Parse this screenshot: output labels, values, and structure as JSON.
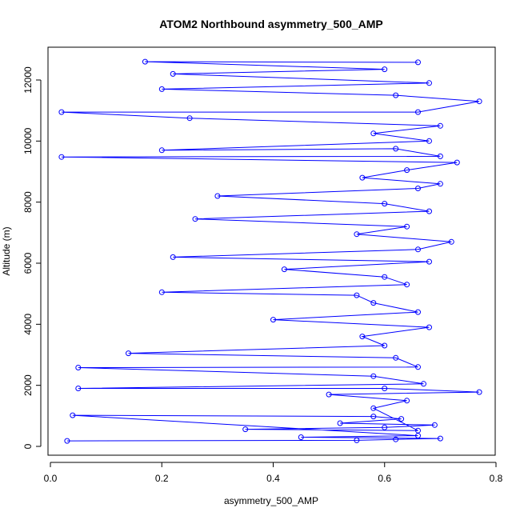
{
  "chart_data": {
    "type": "line",
    "title": "ATOM2 Northbound asymmetry_500_AMP",
    "xlabel": "asymmetry_500_AMP",
    "ylabel": "Altitude (m)",
    "xlim": [
      0,
      0.8
    ],
    "ylim": [
      0,
      12700
    ],
    "x_ticks": [
      "0.0",
      "0.2",
      "0.4",
      "0.6",
      "0.8"
    ],
    "y_ticks": [
      "0",
      "2000",
      "4000",
      "6000",
      "8000",
      "10000",
      "12000"
    ],
    "grid": false,
    "legend": "none",
    "series_color": "#0000ff",
    "marker": "open-circle",
    "series": [
      {
        "points": [
          [
            0.03,
            180
          ],
          [
            0.55,
            200
          ],
          [
            0.62,
            230
          ],
          [
            0.7,
            260
          ],
          [
            0.45,
            300
          ],
          [
            0.66,
            350
          ],
          [
            0.04,
            1020
          ],
          [
            0.58,
            980
          ],
          [
            0.63,
            900
          ],
          [
            0.52,
            760
          ],
          [
            0.69,
            700
          ],
          [
            0.6,
            620
          ],
          [
            0.35,
            560
          ],
          [
            0.66,
            520
          ],
          [
            0.58,
            1250
          ],
          [
            0.64,
            1500
          ],
          [
            0.5,
            1700
          ],
          [
            0.77,
            1780
          ],
          [
            0.6,
            1900
          ],
          [
            0.05,
            1900
          ],
          [
            0.67,
            2050
          ],
          [
            0.58,
            2300
          ],
          [
            0.05,
            2580
          ],
          [
            0.66,
            2600
          ],
          [
            0.62,
            2900
          ],
          [
            0.14,
            3050
          ],
          [
            0.6,
            3300
          ],
          [
            0.56,
            3600
          ],
          [
            0.68,
            3900
          ],
          [
            0.4,
            4150
          ],
          [
            0.66,
            4400
          ],
          [
            0.58,
            4700
          ],
          [
            0.55,
            4950
          ],
          [
            0.2,
            5050
          ],
          [
            0.64,
            5300
          ],
          [
            0.6,
            5550
          ],
          [
            0.42,
            5800
          ],
          [
            0.68,
            6050
          ],
          [
            0.22,
            6200
          ],
          [
            0.66,
            6450
          ],
          [
            0.72,
            6700
          ],
          [
            0.55,
            6950
          ],
          [
            0.64,
            7200
          ],
          [
            0.26,
            7450
          ],
          [
            0.68,
            7700
          ],
          [
            0.6,
            7950
          ],
          [
            0.3,
            8200
          ],
          [
            0.66,
            8450
          ],
          [
            0.7,
            8600
          ],
          [
            0.56,
            8800
          ],
          [
            0.64,
            9050
          ],
          [
            0.73,
            9300
          ],
          [
            0.02,
            9480
          ],
          [
            0.7,
            9500
          ],
          [
            0.62,
            9750
          ],
          [
            0.2,
            9700
          ],
          [
            0.68,
            10000
          ],
          [
            0.58,
            10250
          ],
          [
            0.7,
            10500
          ],
          [
            0.25,
            10750
          ],
          [
            0.02,
            10950
          ],
          [
            0.66,
            10950
          ],
          [
            0.77,
            11300
          ],
          [
            0.62,
            11500
          ],
          [
            0.2,
            11700
          ],
          [
            0.68,
            11900
          ],
          [
            0.22,
            12200
          ],
          [
            0.6,
            12350
          ],
          [
            0.17,
            12600
          ],
          [
            0.66,
            12580
          ]
        ]
      }
    ]
  }
}
